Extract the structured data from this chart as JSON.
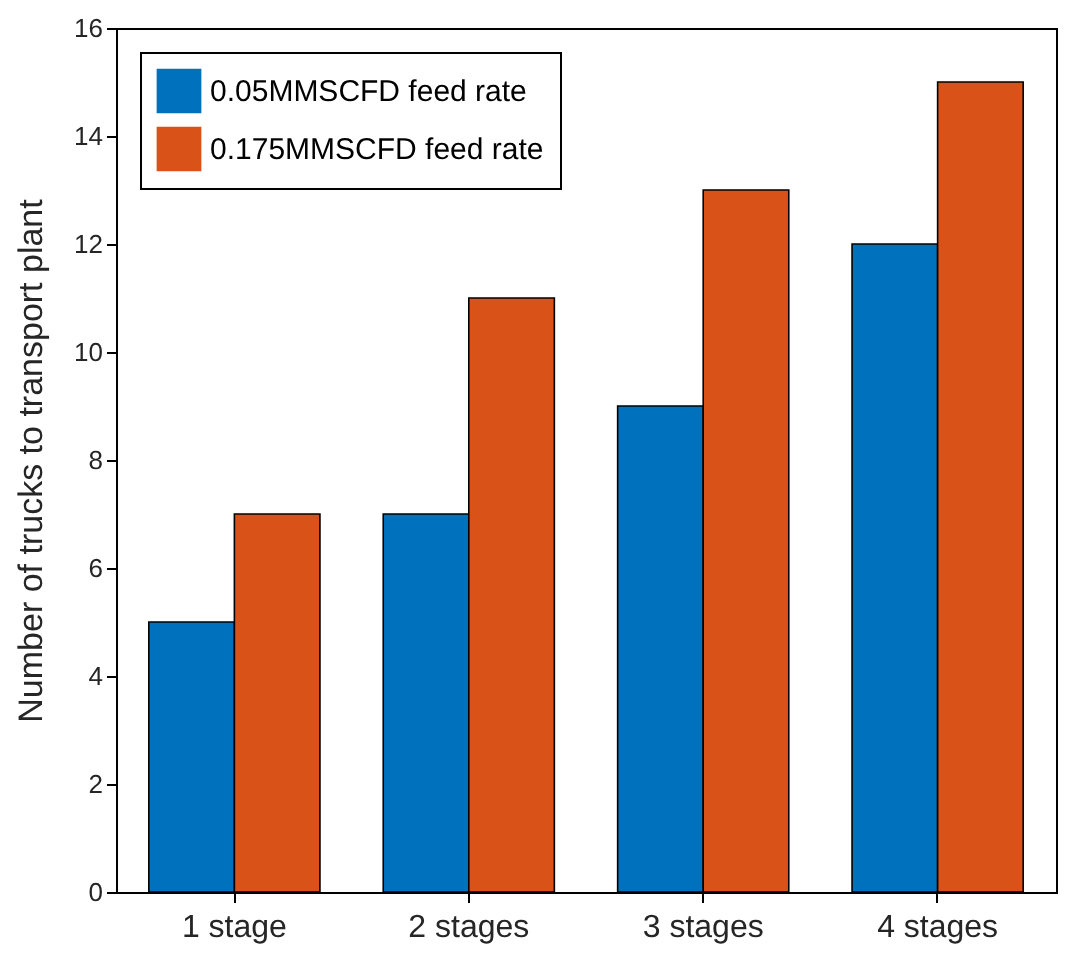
{
  "chart_data": {
    "type": "bar",
    "categories": [
      "1 stage",
      "2 stages",
      "3 stages",
      "4 stages"
    ],
    "ylabel": "Number of trucks to transport plant",
    "ylim": [
      0,
      16
    ],
    "yticks": [
      0,
      2,
      4,
      6,
      8,
      10,
      12,
      14,
      16
    ],
    "legend": "top left",
    "series": [
      {
        "name": "0.05MMSCFD feed rate",
        "color": "#0072bd",
        "values": [
          5,
          7,
          9,
          12
        ]
      },
      {
        "name": "0.175MMSCFD feed rate",
        "color": "#d95319",
        "values": [
          7,
          11,
          13,
          15
        ]
      }
    ]
  }
}
